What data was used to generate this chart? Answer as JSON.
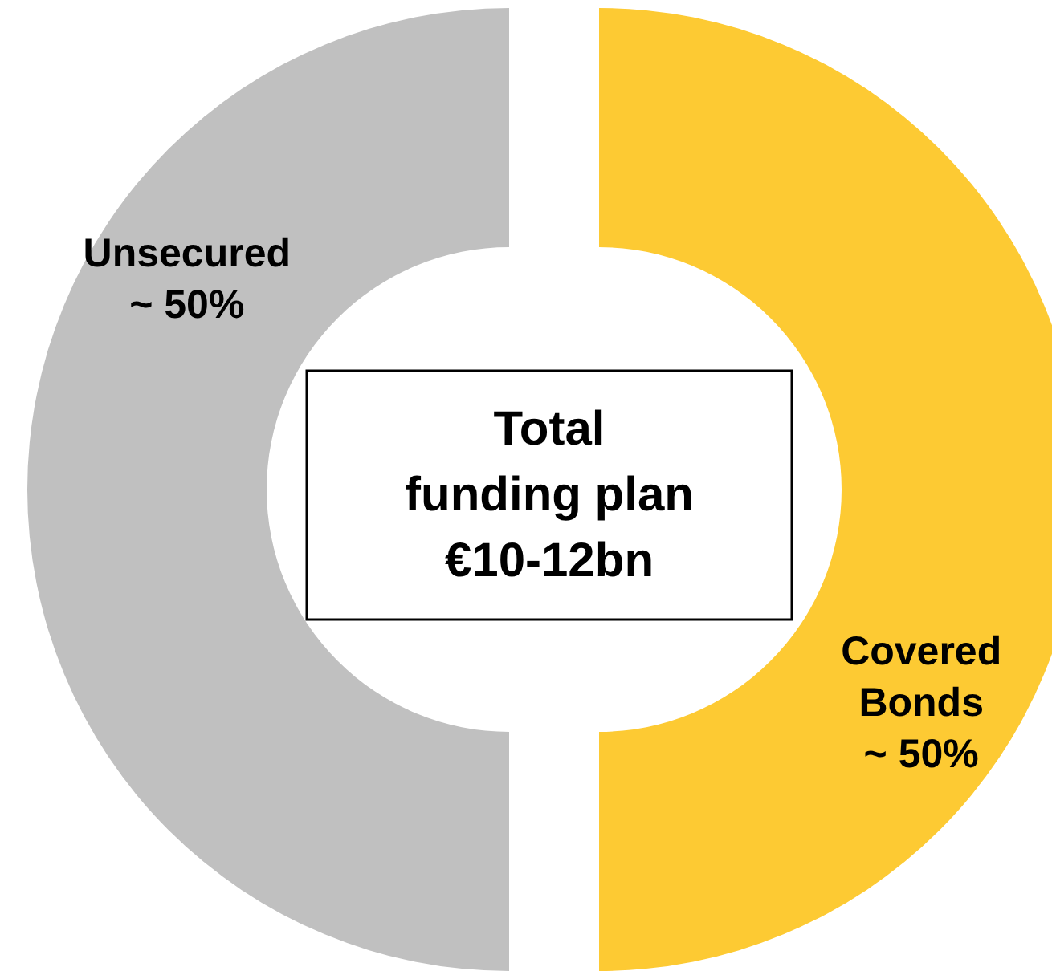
{
  "chart_data": {
    "type": "donut",
    "title": "Total funding plan €10-12bn",
    "categories": [
      "Covered Bonds",
      "Unsecured"
    ],
    "values": [
      50,
      50
    ],
    "colors": [
      "#fdca33",
      "#c0c0c0"
    ],
    "value_labels": [
      "~ 50%",
      "~ 50%"
    ]
  }
}
